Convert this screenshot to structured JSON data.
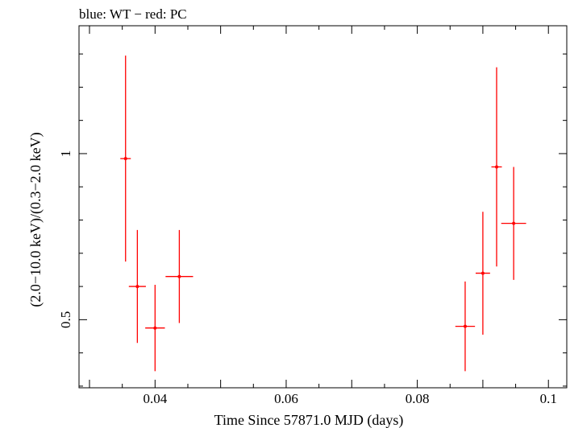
{
  "chart_data": {
    "type": "scatter",
    "title": "blue: WT − red: PC",
    "xlabel": "Time Since 57871.0 MJD (days)",
    "ylabel": "(2.0−10.0 keV)/(0.3−2.0 keV)",
    "xlim": [
      0.0284,
      0.1028
    ],
    "ylim": [
      0.295,
      1.385
    ],
    "x_ticks": [
      {
        "value": 0.04,
        "label": "0.04"
      },
      {
        "value": 0.06,
        "label": "0.06"
      },
      {
        "value": 0.08,
        "label": "0.08"
      },
      {
        "value": 0.1,
        "label": "0.1"
      }
    ],
    "y_ticks": [
      {
        "value": 0.5,
        "label": "0.5"
      },
      {
        "value": 1.0,
        "label": "1"
      }
    ],
    "series": [
      {
        "name": "PC",
        "color": "#ff0000",
        "points": [
          {
            "x": 0.0355,
            "y": 0.985,
            "xlo": 0.0347,
            "xhi": 0.0363,
            "ylo": 0.675,
            "yhi": 1.295
          },
          {
            "x": 0.0373,
            "y": 0.6,
            "xlo": 0.036,
            "xhi": 0.0386,
            "ylo": 0.43,
            "yhi": 0.77
          },
          {
            "x": 0.04,
            "y": 0.475,
            "xlo": 0.0385,
            "xhi": 0.0415,
            "ylo": 0.345,
            "yhi": 0.605
          },
          {
            "x": 0.0437,
            "y": 0.63,
            "xlo": 0.0416,
            "xhi": 0.0458,
            "ylo": 0.49,
            "yhi": 0.77
          },
          {
            "x": 0.0873,
            "y": 0.48,
            "xlo": 0.0858,
            "xhi": 0.0888,
            "ylo": 0.345,
            "yhi": 0.615
          },
          {
            "x": 0.09,
            "y": 0.64,
            "xlo": 0.0889,
            "xhi": 0.0911,
            "ylo": 0.455,
            "yhi": 0.825
          },
          {
            "x": 0.0921,
            "y": 0.96,
            "xlo": 0.0913,
            "xhi": 0.0929,
            "ylo": 0.66,
            "yhi": 1.26
          },
          {
            "x": 0.0947,
            "y": 0.79,
            "xlo": 0.0928,
            "xhi": 0.0966,
            "ylo": 0.62,
            "yhi": 0.96
          }
        ]
      }
    ]
  }
}
